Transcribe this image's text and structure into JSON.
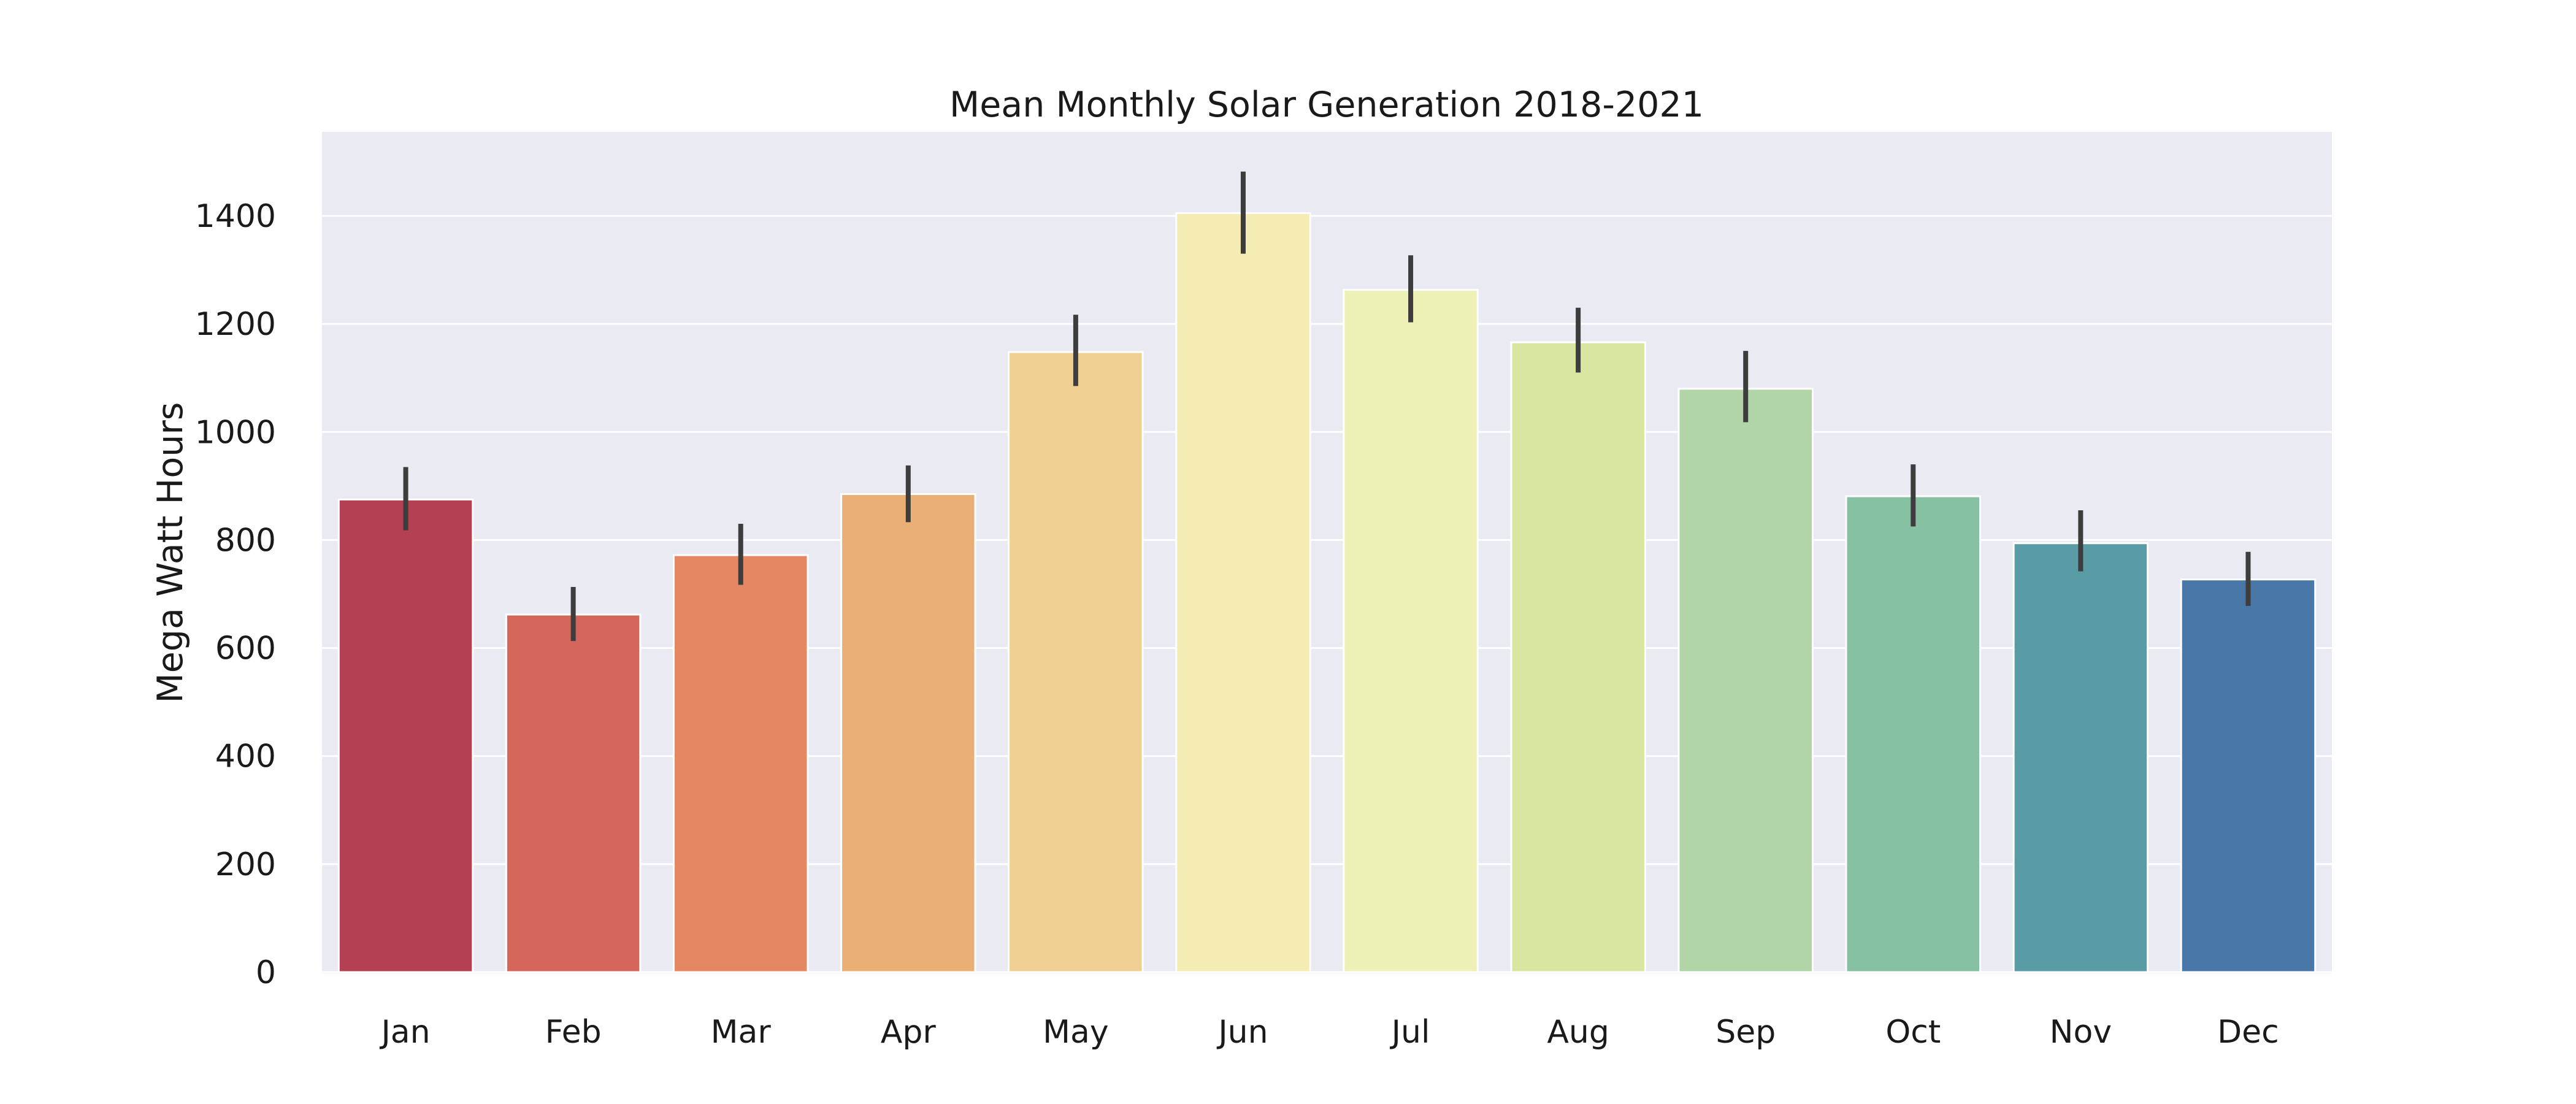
{
  "chart_data": {
    "type": "bar",
    "title": "Mean Monthly Solar Generation 2018-2021",
    "xlabel": "",
    "ylabel": "Mega Watt Hours",
    "ylim": [
      0,
      1550
    ],
    "yticks": [
      0,
      200,
      400,
      600,
      800,
      1000,
      1200,
      1400
    ],
    "grid": true,
    "categories": [
      "Jan",
      "Feb",
      "Mar",
      "Apr",
      "May",
      "Jun",
      "Jul",
      "Aug",
      "Sep",
      "Oct",
      "Nov",
      "Dec"
    ],
    "values": [
      875,
      662,
      772,
      885,
      1148,
      1405,
      1263,
      1166,
      1080,
      881,
      794,
      727
    ],
    "error_bars": [
      [
        818,
        935
      ],
      [
        613,
        713
      ],
      [
        717,
        830
      ],
      [
        833,
        938
      ],
      [
        1085,
        1217
      ],
      [
        1330,
        1482
      ],
      [
        1203,
        1327
      ],
      [
        1110,
        1230
      ],
      [
        1018,
        1150
      ],
      [
        825,
        940
      ],
      [
        742,
        855
      ],
      [
        678,
        778
      ]
    ],
    "colors": [
      "#b34054",
      "#d4665c",
      "#e38862",
      "#eaaf75",
      "#f0d092",
      "#f4ecb2",
      "#eef1b5",
      "#d8e6a1",
      "#b2d5a8",
      "#86c1a3",
      "#5a9ca5",
      "#4978a8"
    ],
    "background": "#eaeaf2",
    "error_color": "#3d3d3d"
  }
}
